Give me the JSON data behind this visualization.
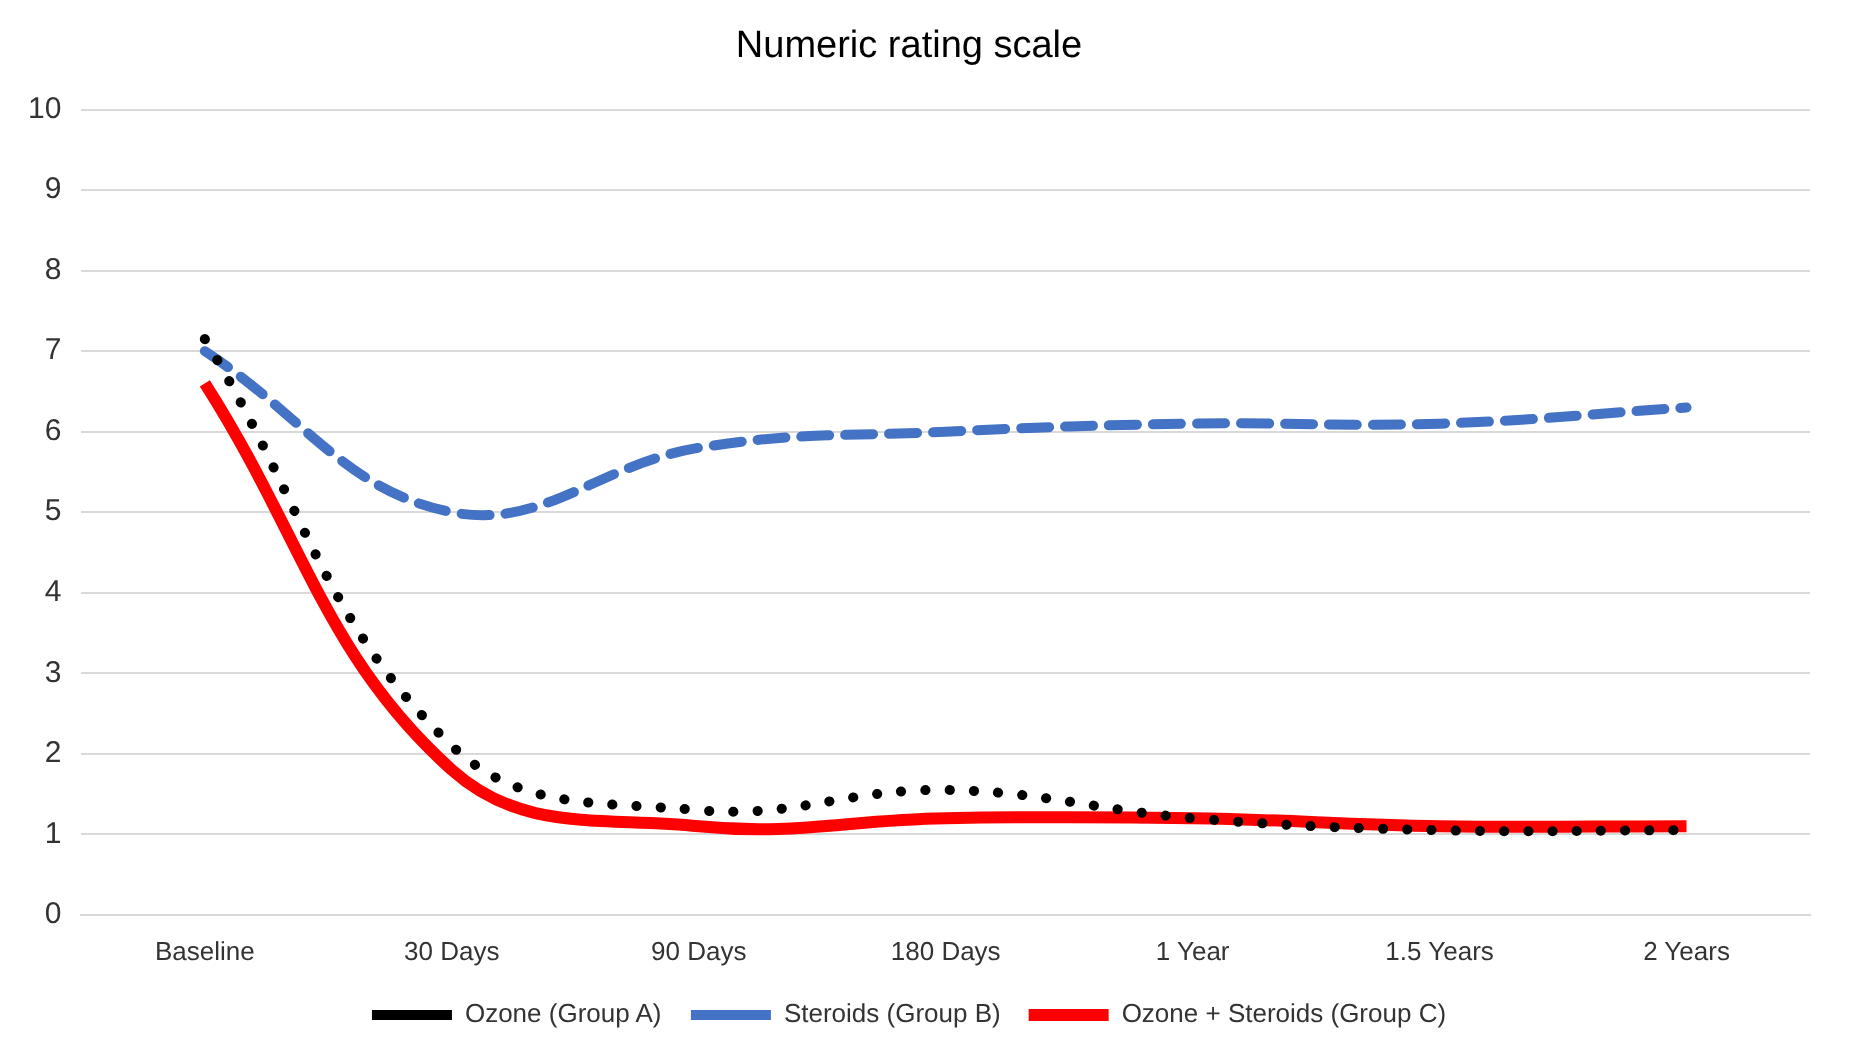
{
  "chart_data": {
    "type": "line",
    "title": "Numeric rating scale",
    "categories": [
      "Baseline",
      "30 Days",
      "90 Days",
      "180 Days",
      "1 Year",
      "1.5 Years",
      "2 Years"
    ],
    "series": [
      {
        "name": "Ozone (Group A)",
        "color": "#000000",
        "line_style": "dotted",
        "values": [
          7.15,
          2.1,
          1.3,
          1.55,
          1.2,
          1.05,
          1.05
        ]
      },
      {
        "name": "Steroids (Group B)",
        "color": "#4472c4",
        "line_style": "dashed",
        "values": [
          7.0,
          5.0,
          5.8,
          6.0,
          6.1,
          6.1,
          6.3
        ]
      },
      {
        "name": "Ozone + Steroids (Group C)",
        "color": "#ff0000",
        "line_style": "solid",
        "values": [
          6.6,
          1.8,
          1.1,
          1.2,
          1.2,
          1.1,
          1.1
        ]
      }
    ],
    "ylim": [
      0,
      10
    ],
    "yticks": [
      0,
      1,
      2,
      3,
      4,
      5,
      6,
      7,
      8,
      9,
      10
    ],
    "grid": "y",
    "legend": "bottom",
    "marker": "none"
  }
}
